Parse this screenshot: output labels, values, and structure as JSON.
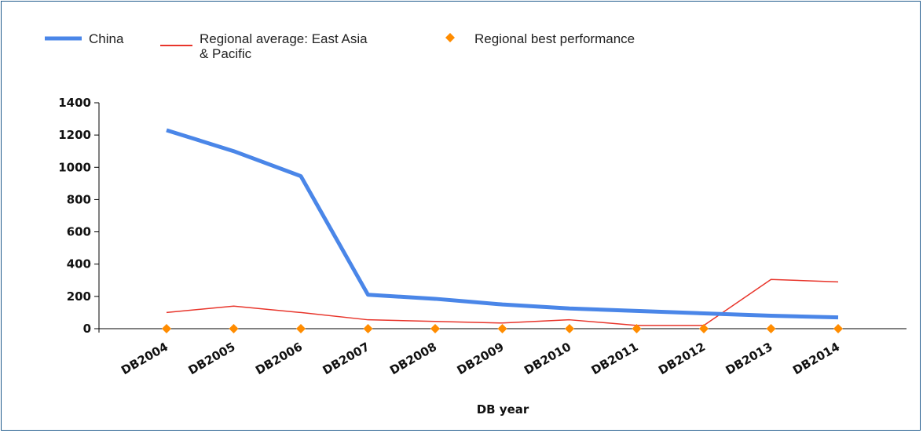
{
  "chart_data": {
    "type": "line",
    "title": "",
    "xlabel": "DB year",
    "ylabel": "",
    "categories": [
      "DB2004",
      "DB2005",
      "DB2006",
      "DB2007",
      "DB2008",
      "DB2009",
      "DB2010",
      "DB2011",
      "DB2012",
      "DB2013",
      "DB2014"
    ],
    "ylim": [
      0,
      1400
    ],
    "yticks": [
      0,
      200,
      400,
      600,
      800,
      1000,
      1200,
      1400
    ],
    "grid": false,
    "legend": "top-left",
    "series": [
      {
        "name": "China",
        "color": "#4a86e8",
        "style": "line-thick",
        "values": [
          1230,
          1100,
          945,
          210,
          185,
          150,
          125,
          110,
          95,
          80,
          70
        ]
      },
      {
        "name": "Regional average: East Asia & Pacific",
        "legend_lines": [
          "Regional average: East Asia",
          "& Pacific"
        ],
        "color": "#e8352b",
        "style": "line-thin",
        "values": [
          100,
          140,
          100,
          55,
          45,
          35,
          55,
          20,
          20,
          305,
          290
        ]
      },
      {
        "name": "Regional best performance",
        "color": "#ff8c00",
        "style": "diamond-markers",
        "values": [
          0,
          0,
          0,
          0,
          0,
          0,
          0,
          0,
          0,
          0,
          0
        ]
      }
    ]
  }
}
